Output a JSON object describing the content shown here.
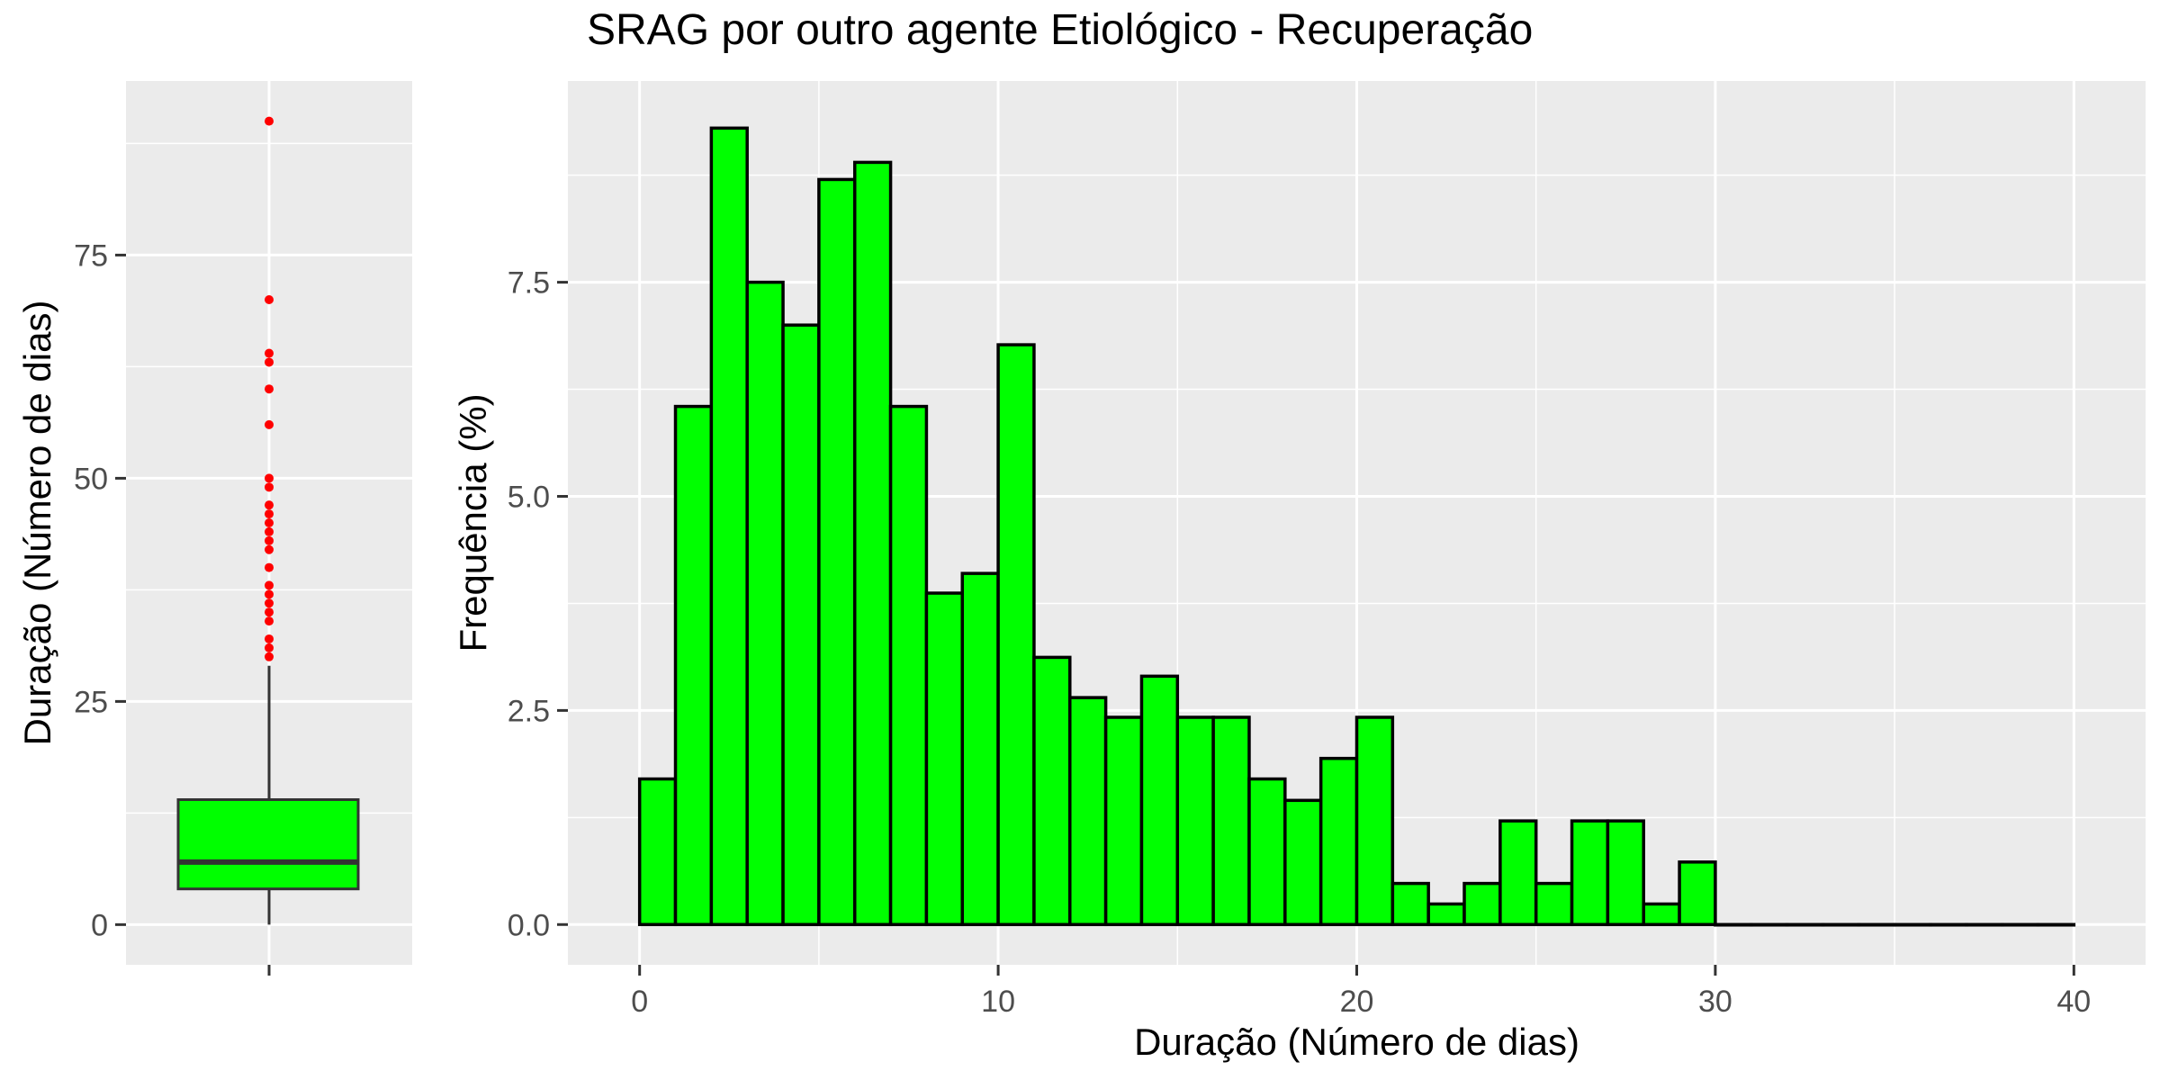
{
  "title": "SRAG por outro agente Etiológico - Recuperação",
  "colors": {
    "panel": "#ebebeb",
    "grid": "#ffffff",
    "fill": "#00ff00",
    "outline": "#000000",
    "outlier": "#ff0000",
    "tick": "#333333"
  },
  "chart_data": [
    {
      "type": "box",
      "ylabel": "Duração (Número de dias)",
      "ylim": [
        -4.5,
        94.5
      ],
      "yticks": [
        0,
        25,
        50,
        75
      ],
      "box": {
        "min": 0,
        "q1": 4,
        "median": 7,
        "q3": 14,
        "upper_whisker": 29
      },
      "outliers": [
        30,
        31,
        32,
        34,
        35,
        36,
        37,
        38,
        40,
        42,
        43,
        44,
        45,
        46,
        47,
        49,
        50,
        56,
        60,
        63,
        64,
        70,
        90
      ]
    },
    {
      "type": "bar",
      "xlabel": "Duração (Número de dias)",
      "ylabel": "Frequência (%)",
      "xlim": [
        -2,
        42
      ],
      "ylim": [
        -0.47,
        9.85
      ],
      "xticks": [
        0,
        10,
        20,
        30,
        40
      ],
      "yticks": [
        "0.0",
        "2.5",
        "5.0",
        "7.5"
      ],
      "bin_width": 1,
      "bin_start": 0,
      "values": [
        1.7,
        6.05,
        9.3,
        7.5,
        7.0,
        8.7,
        8.9,
        6.05,
        3.87,
        4.1,
        6.77,
        3.12,
        2.65,
        2.42,
        2.9,
        2.42,
        2.42,
        1.7,
        1.45,
        1.94,
        2.42,
        0.48,
        0.24,
        0.48,
        1.21,
        0.48,
        1.21,
        1.21,
        0.24,
        0.73,
        0,
        0,
        0,
        0,
        0,
        0,
        0,
        0,
        0,
        0
      ]
    }
  ]
}
